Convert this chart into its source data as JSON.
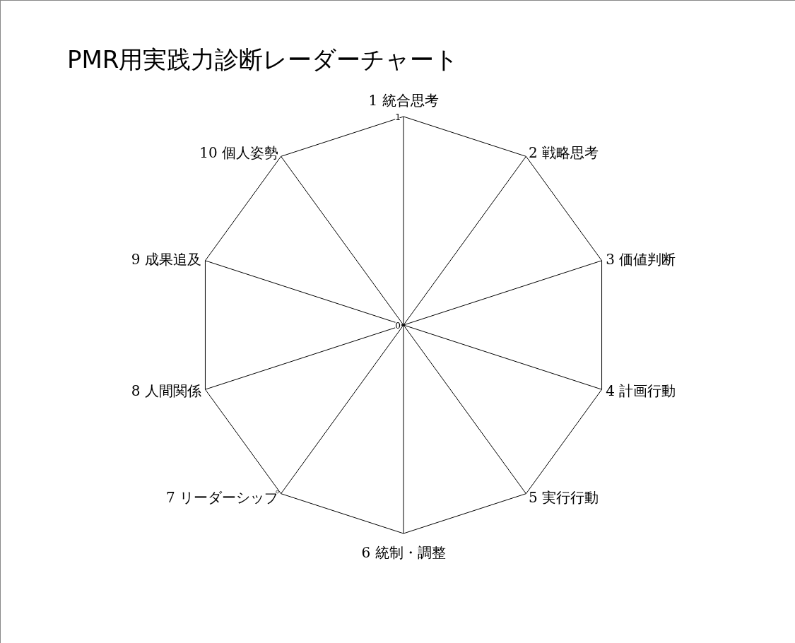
{
  "chart_data": {
    "type": "radar",
    "title": "PMR用実践力診断レーダーチャート",
    "categories": [
      "1 統合思考",
      "2 戦略思考",
      "3 価値判断",
      "4 計画行動",
      "5 実行行動",
      "6 統制・調整",
      "7 リーダーシップ",
      "8 人間関係",
      "9 成果追及",
      "10 個人姿勢"
    ],
    "ylim": [
      0,
      1
    ],
    "yticks": [
      0,
      1
    ]
  }
}
